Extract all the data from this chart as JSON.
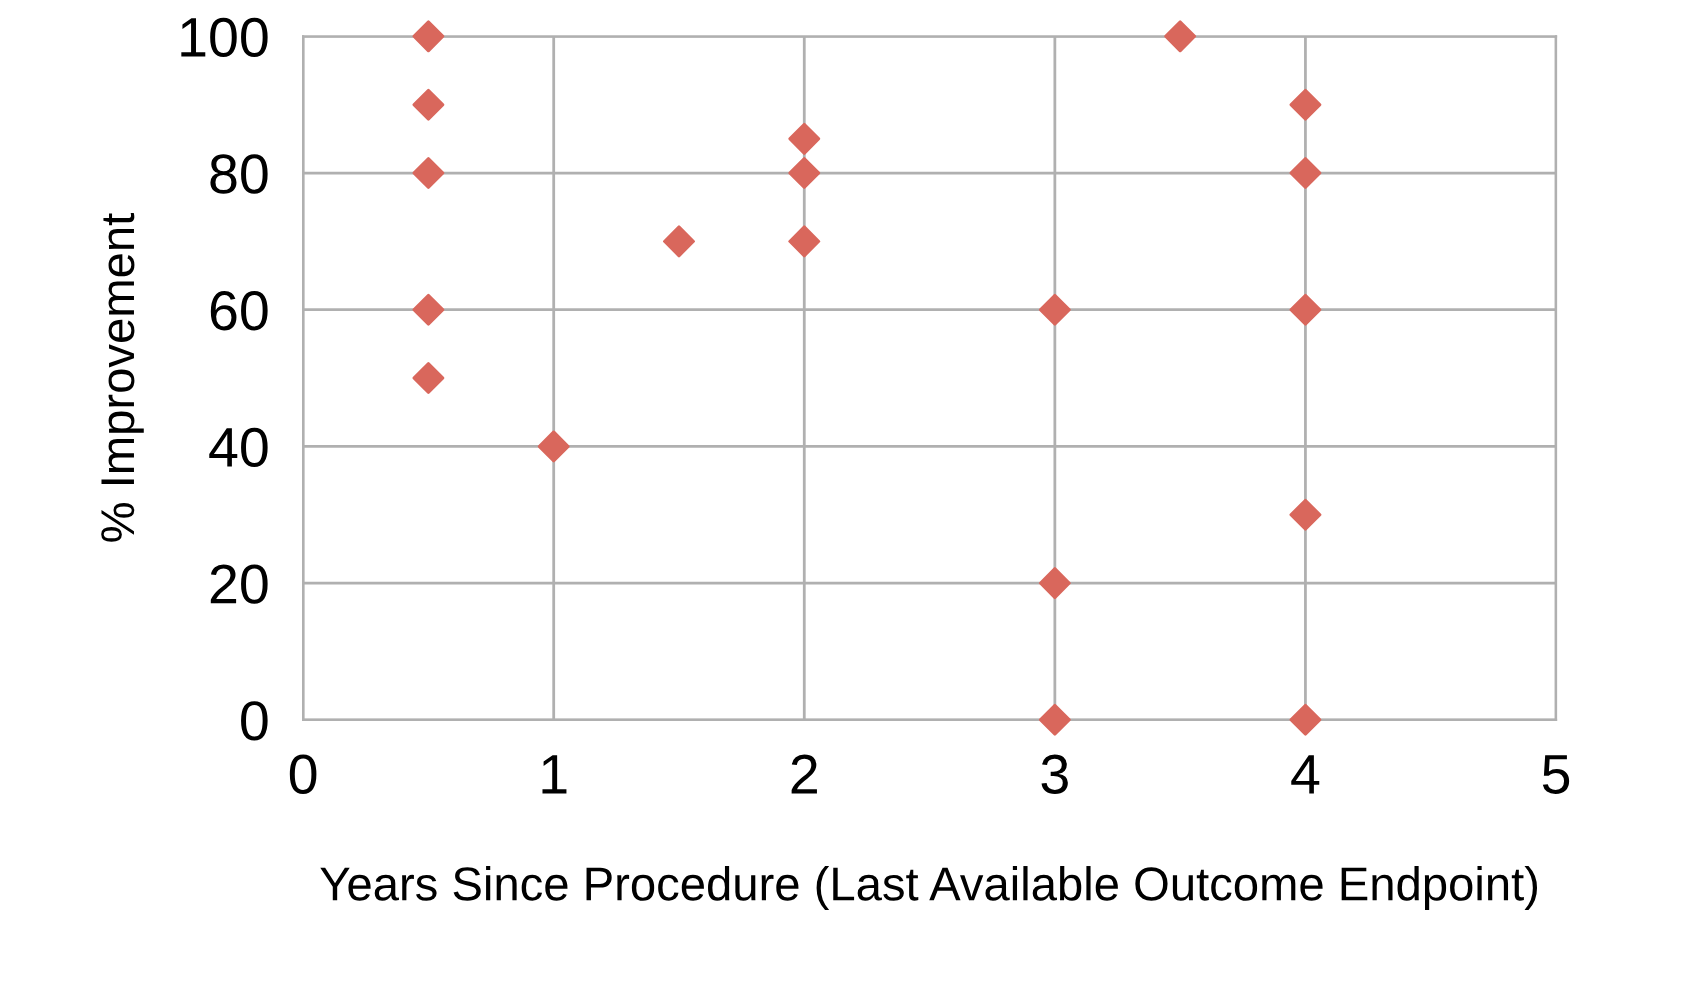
{
  "chart_data": {
    "type": "scatter",
    "xlabel": "Years Since Procedure (Last Available Outcome Endpoint)",
    "ylabel": "% Improvement",
    "series": [
      {
        "color": "#d9675c",
        "x": [
          0.5,
          0.5,
          0.5,
          0.5,
          0.5,
          1,
          1.5,
          2,
          2,
          2,
          3,
          3,
          3,
          3.5,
          4,
          4,
          4,
          4,
          4
        ],
        "values": [
          100,
          90,
          80,
          60,
          50,
          40,
          70,
          85,
          80,
          70,
          60,
          20,
          0,
          100,
          90,
          80,
          60,
          30,
          0
        ]
      }
    ],
    "xlim": [
      0,
      5
    ],
    "ylim": [
      0,
      100
    ],
    "xticks": [
      0,
      1,
      2,
      3,
      4,
      5
    ],
    "yticks": [
      0,
      20,
      40,
      60,
      80,
      100
    ],
    "grid": true,
    "marker": "diamond",
    "legend": false
  }
}
